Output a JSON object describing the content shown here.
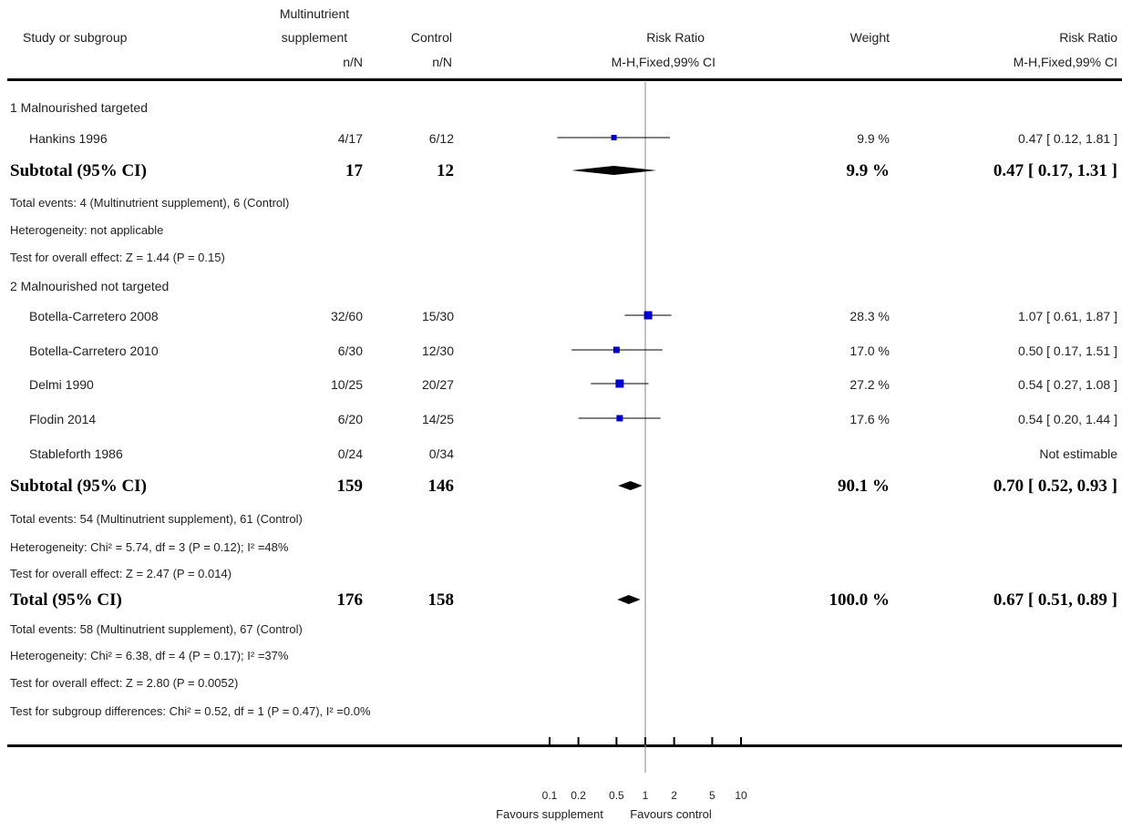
{
  "header": {
    "study_col": "Study or subgroup",
    "treat_col_line1": "Multinutrient",
    "treat_col_line2": "supplement",
    "control_col": "Control",
    "effect_col": "Risk Ratio",
    "weight_col": "Weight",
    "ci_col": "Risk Ratio",
    "treat_sub": "n/N",
    "control_sub": "n/N",
    "effect_sub": "M-H,Fixed,99% CI",
    "ci_sub": "M-H,Fixed,99% CI"
  },
  "groups": [
    {
      "label": "1 Malnourished targeted",
      "studies": [
        {
          "name": "Hankins 1996",
          "treat": "4/17",
          "control": "6/12",
          "weight": "9.9 %",
          "ci_text": "0.47 [ 0.12, 1.81 ]"
        }
      ],
      "subtotal": {
        "label": "Subtotal (95% CI)",
        "treat": "17",
        "control": "12",
        "weight": "9.9 %",
        "ci_text": "0.47 [ 0.17, 1.31 ]"
      },
      "notes": [
        "Total events: 4 (Multinutrient supplement), 6 (Control)",
        "Heterogeneity: not applicable",
        "Test for overall effect: Z = 1.44 (P = 0.15)"
      ]
    },
    {
      "label": "2 Malnourished not targeted",
      "studies": [
        {
          "name": "Botella-Carretero 2008",
          "treat": "32/60",
          "control": "15/30",
          "weight": "28.3 %",
          "ci_text": "1.07 [ 0.61, 1.87 ]"
        },
        {
          "name": "Botella-Carretero 2010",
          "treat": "6/30",
          "control": "12/30",
          "weight": "17.0 %",
          "ci_text": "0.50 [ 0.17, 1.51 ]"
        },
        {
          "name": "Delmi 1990",
          "treat": "10/25",
          "control": "20/27",
          "weight": "27.2 %",
          "ci_text": "0.54 [ 0.27, 1.08 ]"
        },
        {
          "name": "Flodin 2014",
          "treat": "6/20",
          "control": "14/25",
          "weight": "17.6 %",
          "ci_text": "0.54 [ 0.20, 1.44 ]"
        },
        {
          "name": "Stableforth 1986",
          "treat": "0/24",
          "control": "0/34",
          "weight": "",
          "ci_text": "Not estimable"
        }
      ],
      "subtotal": {
        "label": "Subtotal (95% CI)",
        "treat": "159",
        "control": "146",
        "weight": "90.1 %",
        "ci_text": "0.70 [ 0.52, 0.93 ]"
      },
      "notes": [
        "Total events: 54 (Multinutrient supplement), 61 (Control)",
        "Heterogeneity: Chi² = 5.74, df = 3 (P = 0.12); I² =48%",
        "Test for overall effect: Z = 2.47 (P = 0.014)"
      ]
    }
  ],
  "total": {
    "label": "Total (95% CI)",
    "treat": "176",
    "control": "158",
    "weight": "100.0 %",
    "ci_text": "0.67 [ 0.51, 0.89 ]"
  },
  "total_notes": [
    "Total events: 58 (Multinutrient supplement), 67 (Control)",
    "Heterogeneity: Chi² = 6.38, df = 4 (P = 0.17); I² =37%",
    "Test for overall effect: Z = 2.80 (P = 0.0052)",
    "Test for subgroup differences: Chi² = 0.52, df = 1 (P = 0.47), I² =0.0%"
  ],
  "axis": {
    "favours_left": "Favours supplement",
    "favours_right": "Favours control"
  },
  "chart_data": {
    "type": "forest",
    "scale": "log",
    "xlim": [
      0.1,
      10
    ],
    "ticks": [
      0.1,
      0.2,
      0.5,
      1,
      2,
      5,
      10
    ],
    "tick_labels": [
      "0.1",
      "0.2",
      "0.5",
      "1",
      "2",
      "5",
      "10"
    ],
    "reference_line": 1,
    "colors": {
      "study_marker": "#0000cc",
      "summary_diamond": "#000000"
    },
    "studies": [
      {
        "name": "Hankins 1996",
        "rr": 0.47,
        "lo": 0.12,
        "hi": 1.81,
        "weight": 9.9
      },
      {
        "name": "Botella-Carretero 2008",
        "rr": 1.07,
        "lo": 0.61,
        "hi": 1.87,
        "weight": 28.3
      },
      {
        "name": "Botella-Carretero 2010",
        "rr": 0.5,
        "lo": 0.17,
        "hi": 1.51,
        "weight": 17.0
      },
      {
        "name": "Delmi 1990",
        "rr": 0.54,
        "lo": 0.27,
        "hi": 1.08,
        "weight": 27.2
      },
      {
        "name": "Flodin 2014",
        "rr": 0.54,
        "lo": 0.2,
        "hi": 1.44,
        "weight": 17.6
      }
    ],
    "summaries": [
      {
        "name": "Subtotal 1 Malnourished targeted",
        "rr": 0.47,
        "lo": 0.17,
        "hi": 1.31
      },
      {
        "name": "Subtotal 2 Malnourished not targeted",
        "rr": 0.7,
        "lo": 0.52,
        "hi": 0.93
      },
      {
        "name": "Total",
        "rr": 0.67,
        "lo": 0.51,
        "hi": 0.89
      }
    ]
  }
}
